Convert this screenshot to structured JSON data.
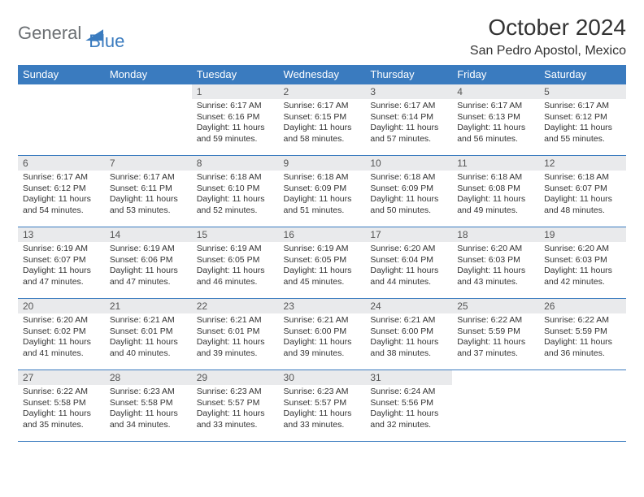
{
  "logo": {
    "part1": "General",
    "part2": "Blue"
  },
  "title": "October 2024",
  "location": "San Pedro Apostol, Mexico",
  "colors": {
    "brand_blue": "#3a7bbf",
    "header_text": "#ffffff",
    "daynum_bg": "#e9eaec",
    "text": "#333333",
    "logo_gray": "#6b6f73",
    "page_bg": "#ffffff"
  },
  "typography": {
    "title_fontsize": 28,
    "location_fontsize": 16,
    "dayheader_fontsize": 13,
    "daynum_fontsize": 12,
    "body_fontsize": 10.5
  },
  "day_headers": [
    "Sunday",
    "Monday",
    "Tuesday",
    "Wednesday",
    "Thursday",
    "Friday",
    "Saturday"
  ],
  "weeks": [
    [
      {
        "empty": true
      },
      {
        "empty": true
      },
      {
        "num": "1",
        "sunrise": "6:17 AM",
        "sunset": "6:16 PM",
        "dl_h": "11",
        "dl_m": "59"
      },
      {
        "num": "2",
        "sunrise": "6:17 AM",
        "sunset": "6:15 PM",
        "dl_h": "11",
        "dl_m": "58"
      },
      {
        "num": "3",
        "sunrise": "6:17 AM",
        "sunset": "6:14 PM",
        "dl_h": "11",
        "dl_m": "57"
      },
      {
        "num": "4",
        "sunrise": "6:17 AM",
        "sunset": "6:13 PM",
        "dl_h": "11",
        "dl_m": "56"
      },
      {
        "num": "5",
        "sunrise": "6:17 AM",
        "sunset": "6:12 PM",
        "dl_h": "11",
        "dl_m": "55"
      }
    ],
    [
      {
        "num": "6",
        "sunrise": "6:17 AM",
        "sunset": "6:12 PM",
        "dl_h": "11",
        "dl_m": "54"
      },
      {
        "num": "7",
        "sunrise": "6:17 AM",
        "sunset": "6:11 PM",
        "dl_h": "11",
        "dl_m": "53"
      },
      {
        "num": "8",
        "sunrise": "6:18 AM",
        "sunset": "6:10 PM",
        "dl_h": "11",
        "dl_m": "52"
      },
      {
        "num": "9",
        "sunrise": "6:18 AM",
        "sunset": "6:09 PM",
        "dl_h": "11",
        "dl_m": "51"
      },
      {
        "num": "10",
        "sunrise": "6:18 AM",
        "sunset": "6:09 PM",
        "dl_h": "11",
        "dl_m": "50"
      },
      {
        "num": "11",
        "sunrise": "6:18 AM",
        "sunset": "6:08 PM",
        "dl_h": "11",
        "dl_m": "49"
      },
      {
        "num": "12",
        "sunrise": "6:18 AM",
        "sunset": "6:07 PM",
        "dl_h": "11",
        "dl_m": "48"
      }
    ],
    [
      {
        "num": "13",
        "sunrise": "6:19 AM",
        "sunset": "6:07 PM",
        "dl_h": "11",
        "dl_m": "47"
      },
      {
        "num": "14",
        "sunrise": "6:19 AM",
        "sunset": "6:06 PM",
        "dl_h": "11",
        "dl_m": "47"
      },
      {
        "num": "15",
        "sunrise": "6:19 AM",
        "sunset": "6:05 PM",
        "dl_h": "11",
        "dl_m": "46"
      },
      {
        "num": "16",
        "sunrise": "6:19 AM",
        "sunset": "6:05 PM",
        "dl_h": "11",
        "dl_m": "45"
      },
      {
        "num": "17",
        "sunrise": "6:20 AM",
        "sunset": "6:04 PM",
        "dl_h": "11",
        "dl_m": "44"
      },
      {
        "num": "18",
        "sunrise": "6:20 AM",
        "sunset": "6:03 PM",
        "dl_h": "11",
        "dl_m": "43"
      },
      {
        "num": "19",
        "sunrise": "6:20 AM",
        "sunset": "6:03 PM",
        "dl_h": "11",
        "dl_m": "42"
      }
    ],
    [
      {
        "num": "20",
        "sunrise": "6:20 AM",
        "sunset": "6:02 PM",
        "dl_h": "11",
        "dl_m": "41"
      },
      {
        "num": "21",
        "sunrise": "6:21 AM",
        "sunset": "6:01 PM",
        "dl_h": "11",
        "dl_m": "40"
      },
      {
        "num": "22",
        "sunrise": "6:21 AM",
        "sunset": "6:01 PM",
        "dl_h": "11",
        "dl_m": "39"
      },
      {
        "num": "23",
        "sunrise": "6:21 AM",
        "sunset": "6:00 PM",
        "dl_h": "11",
        "dl_m": "39"
      },
      {
        "num": "24",
        "sunrise": "6:21 AM",
        "sunset": "6:00 PM",
        "dl_h": "11",
        "dl_m": "38"
      },
      {
        "num": "25",
        "sunrise": "6:22 AM",
        "sunset": "5:59 PM",
        "dl_h": "11",
        "dl_m": "37"
      },
      {
        "num": "26",
        "sunrise": "6:22 AM",
        "sunset": "5:59 PM",
        "dl_h": "11",
        "dl_m": "36"
      }
    ],
    [
      {
        "num": "27",
        "sunrise": "6:22 AM",
        "sunset": "5:58 PM",
        "dl_h": "11",
        "dl_m": "35"
      },
      {
        "num": "28",
        "sunrise": "6:23 AM",
        "sunset": "5:58 PM",
        "dl_h": "11",
        "dl_m": "34"
      },
      {
        "num": "29",
        "sunrise": "6:23 AM",
        "sunset": "5:57 PM",
        "dl_h": "11",
        "dl_m": "33"
      },
      {
        "num": "30",
        "sunrise": "6:23 AM",
        "sunset": "5:57 PM",
        "dl_h": "11",
        "dl_m": "33"
      },
      {
        "num": "31",
        "sunrise": "6:24 AM",
        "sunset": "5:56 PM",
        "dl_h": "11",
        "dl_m": "32"
      },
      {
        "empty": true
      },
      {
        "empty": true
      }
    ]
  ],
  "labels": {
    "sunrise": "Sunrise:",
    "sunset": "Sunset:",
    "daylight": "Daylight:",
    "hours": "hours",
    "and": "and",
    "minutes": "minutes."
  }
}
